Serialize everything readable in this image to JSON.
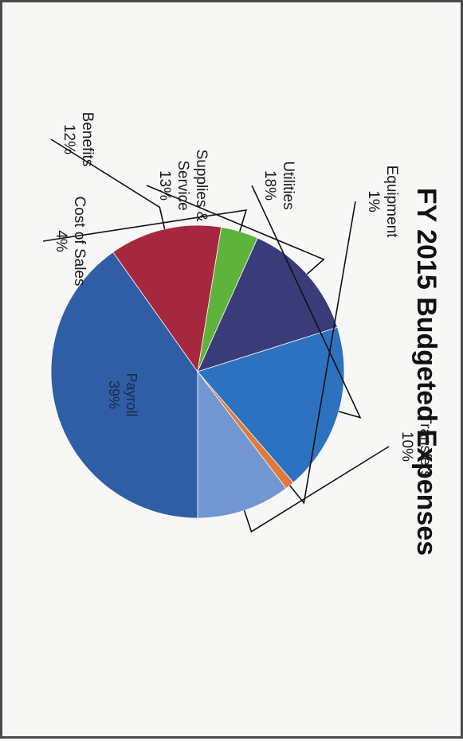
{
  "chart_data": {
    "type": "pie",
    "title": "FY 2015 Budgeted Expenses",
    "slices": [
      {
        "label": "Payroll",
        "pct_label": "39%",
        "value": 39,
        "color": "#2f5ea7"
      },
      {
        "label": "Benefits",
        "pct_label": "12%",
        "value": 12,
        "color": "#a6283f"
      },
      {
        "label": "Cost of Sales",
        "pct_label": "4%",
        "value": 4,
        "color": "#5fb33c"
      },
      {
        "label": "Supplies & Service",
        "pct_label": "13%",
        "value": 13,
        "color": "#3a3c7a"
      },
      {
        "label": "Utilities",
        "pct_label": "18%",
        "value": 18,
        "color": "#2c72c0"
      },
      {
        "label": "Equipment",
        "pct_label": "1%",
        "value": 1,
        "color": "#e07a3b"
      },
      {
        "label": "Transfers",
        "pct_label": "10%",
        "value": 10,
        "color": "#7196d2"
      }
    ],
    "rotation": "rotated 90 degrees clockwise"
  }
}
